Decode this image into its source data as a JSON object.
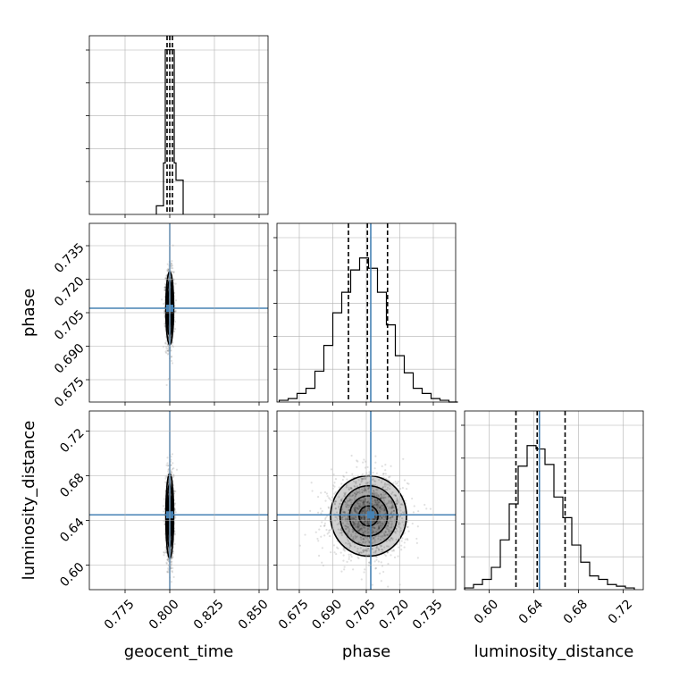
{
  "colors": {
    "truth": "#4682b4",
    "contour": "#000000",
    "grid": "#b0b0b0",
    "hist": "#000000",
    "quantile": "#000000"
  },
  "chart_data": {
    "type": "corner",
    "parameters": [
      "geocent_time",
      "phase",
      "luminosity_distance"
    ],
    "truths": {
      "geocent_time": 0.8,
      "phase": 0.707,
      "luminosity_distance": 0.645
    },
    "ranges": {
      "geocent_time": [
        0.755,
        0.855
      ],
      "phase": [
        0.665,
        0.745
      ],
      "luminosity_distance": [
        0.578,
        0.738
      ]
    },
    "ticks": {
      "geocent_time": [
        "0.775",
        "0.800",
        "0.825",
        "0.850"
      ],
      "phase": [
        "0.675",
        "0.690",
        "0.705",
        "0.720",
        "0.735"
      ],
      "luminosity_distance": [
        "0.60",
        "0.64",
        "0.68",
        "0.72"
      ]
    },
    "quantiles": {
      "geocent_time": [
        0.7985,
        0.8,
        0.8015
      ],
      "phase": [
        0.697,
        0.7055,
        0.7145
      ],
      "luminosity_distance": [
        0.624,
        0.643,
        0.668
      ]
    },
    "histograms": {
      "geocent_time": {
        "edges": [
          0.7925,
          0.7965,
          0.7975,
          0.7985,
          0.8015,
          0.8025,
          0.8035,
          0.8075
        ],
        "counts": [
          0.05,
          0.3,
          0.96,
          0.96,
          0.96,
          0.3,
          0.2
        ]
      },
      "phase": {
        "edges": [
          0.666,
          0.67,
          0.674,
          0.678,
          0.682,
          0.686,
          0.69,
          0.694,
          0.698,
          0.702,
          0.706,
          0.71,
          0.714,
          0.718,
          0.722,
          0.726,
          0.73,
          0.734,
          0.738,
          0.742,
          0.746
        ],
        "counts": [
          0.01,
          0.02,
          0.05,
          0.08,
          0.18,
          0.33,
          0.52,
          0.64,
          0.77,
          0.84,
          0.78,
          0.64,
          0.45,
          0.27,
          0.17,
          0.08,
          0.05,
          0.02,
          0.01,
          0.0
        ]
      },
      "luminosity_distance": {
        "edges": [
          0.578,
          0.586,
          0.594,
          0.602,
          0.61,
          0.618,
          0.626,
          0.634,
          0.642,
          0.65,
          0.658,
          0.666,
          0.674,
          0.682,
          0.69,
          0.698,
          0.706,
          0.714,
          0.722,
          0.73
        ],
        "counts": [
          0.01,
          0.03,
          0.06,
          0.13,
          0.29,
          0.5,
          0.72,
          0.84,
          0.82,
          0.73,
          0.54,
          0.42,
          0.26,
          0.16,
          0.08,
          0.06,
          0.03,
          0.02,
          0.01
        ]
      }
    },
    "posterior_2d": {
      "phase|geocent_time": {
        "center": [
          0.8,
          0.707
        ],
        "sd": [
          0.0011,
          0.0082
        ],
        "corr": 0.0
      },
      "luminosity_distance|geocent_time": {
        "center": [
          0.8,
          0.644
        ],
        "sd": [
          0.0011,
          0.019
        ],
        "corr": 0.0
      },
      "luminosity_distance|phase": {
        "center": [
          0.706,
          0.644
        ],
        "sd": [
          0.0085,
          0.018
        ],
        "corr": 0.0
      }
    },
    "contour_levels_sigma": [
      0.5,
      1.0,
      1.5,
      2.0
    ],
    "xlabel": [
      "geocent_time",
      "phase",
      "luminosity_distance"
    ],
    "ylabel": [
      "phase",
      "luminosity_distance"
    ],
    "grid": true
  }
}
